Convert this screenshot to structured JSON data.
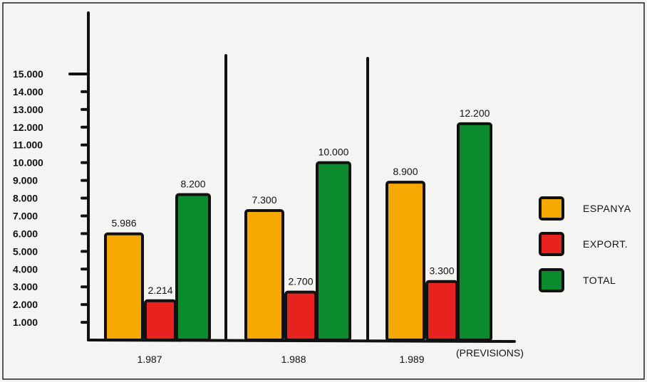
{
  "chart_data": {
    "type": "bar",
    "categories": [
      "1.987",
      "1.988",
      "1.989"
    ],
    "category_note": "(PREVISIONS)",
    "series": [
      {
        "name": "ESPANYA",
        "color": "#f5a800",
        "values": [
          5986,
          7300,
          8900
        ],
        "labels": [
          "5.986",
          "7.300",
          "8.900"
        ]
      },
      {
        "name": "EXPORT.",
        "color": "#e8231f",
        "values": [
          2214,
          2700,
          3300
        ],
        "labels": [
          "2.214",
          "2.700",
          "3.300"
        ]
      },
      {
        "name": "TOTAL",
        "color": "#0b8a2e",
        "values": [
          8200,
          10000,
          12200
        ],
        "labels": [
          "8.200",
          "10.000",
          "12.200"
        ]
      }
    ],
    "y_ticks": [
      "1.000",
      "2.000",
      "3.000",
      "4.000",
      "5.000",
      "6.000",
      "7.000",
      "8.000",
      "9.000",
      "10.000",
      "11.000",
      "12.000",
      "13.000",
      "14.000",
      "15.000"
    ],
    "y_tick_values": [
      1000,
      2000,
      3000,
      4000,
      5000,
      6000,
      7000,
      8000,
      9000,
      10000,
      11000,
      12000,
      13000,
      14000,
      15000
    ],
    "ylim": [
      0,
      15000
    ],
    "legend_position": "right",
    "grid": false
  }
}
